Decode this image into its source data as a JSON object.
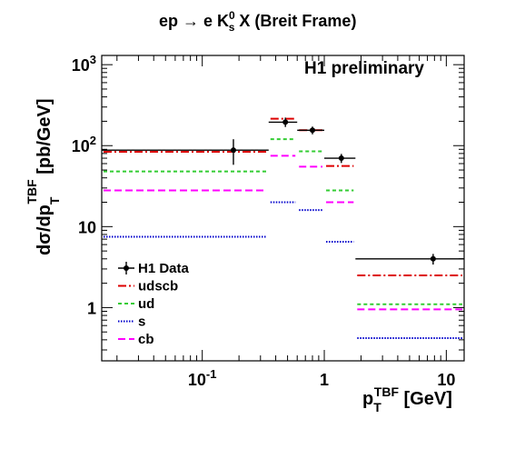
{
  "chart_data": {
    "type": "line",
    "title": {
      "main_pre": "ep ",
      "arrow": "→",
      "main_mid": " e K",
      "sup": "0",
      "sub": "s",
      "main_post": " X (Breit Frame)"
    },
    "xlabel": {
      "main": "p",
      "sub": "T",
      "sup": "TBF",
      "unit": " [GeV]"
    },
    "ylabel": {
      "main": "dσ/dp",
      "sub": "T",
      "sup": "TBF",
      "unit": " [pb/GeV]"
    },
    "annotation": "H1 preliminary",
    "xlim": [
      0.015,
      14
    ],
    "ylim": [
      0.22,
      1300
    ],
    "log_x": true,
    "log_y": true,
    "grid": false,
    "legend_position": "bottom-left",
    "x_ticks": [
      {
        "value": 0.1,
        "label": "10",
        "sup": "-1"
      },
      {
        "value": 1,
        "label": "1",
        "sup": ""
      },
      {
        "value": 10,
        "label": "10",
        "sup": ""
      }
    ],
    "y_ticks": [
      {
        "value": 1,
        "label": "1",
        "sup": ""
      },
      {
        "value": 10,
        "label": "10",
        "sup": ""
      },
      {
        "value": 100,
        "label": "10",
        "sup": "2"
      },
      {
        "value": 1000,
        "label": "10",
        "sup": "3"
      }
    ],
    "bin_edges": [
      0.015,
      0.35,
      0.6,
      1.0,
      1.8,
      14
    ],
    "series": [
      {
        "name": "udscb",
        "color": "#dd0000",
        "dash": "9,3,2,3",
        "values": [
          84,
          215,
          155,
          56,
          2.5
        ]
      },
      {
        "name": "ud",
        "color": "#33cc33",
        "dash": "4,3",
        "values": [
          48,
          120,
          85,
          28,
          1.1
        ]
      },
      {
        "name": "s",
        "color": "#0000cc",
        "dash": "1.5,1.5",
        "values": [
          7.5,
          20,
          16,
          6.5,
          0.42
        ]
      },
      {
        "name": "cb",
        "color": "#ff00ff",
        "dash": "8,4",
        "values": [
          28,
          75,
          55,
          20,
          0.95
        ]
      }
    ],
    "data": {
      "name": "H1 Data",
      "color": "#000000",
      "points": [
        {
          "x": 0.18,
          "y": 88,
          "ylo": 58,
          "yhi": 120
        },
        {
          "x": 0.48,
          "y": 195,
          "ylo": 170,
          "yhi": 222
        },
        {
          "x": 0.8,
          "y": 155,
          "ylo": 138,
          "yhi": 172
        },
        {
          "x": 1.38,
          "y": 70,
          "ylo": 61,
          "yhi": 79
        },
        {
          "x": 7.8,
          "y": 4,
          "ylo": 3.4,
          "yhi": 4.6
        }
      ]
    }
  }
}
